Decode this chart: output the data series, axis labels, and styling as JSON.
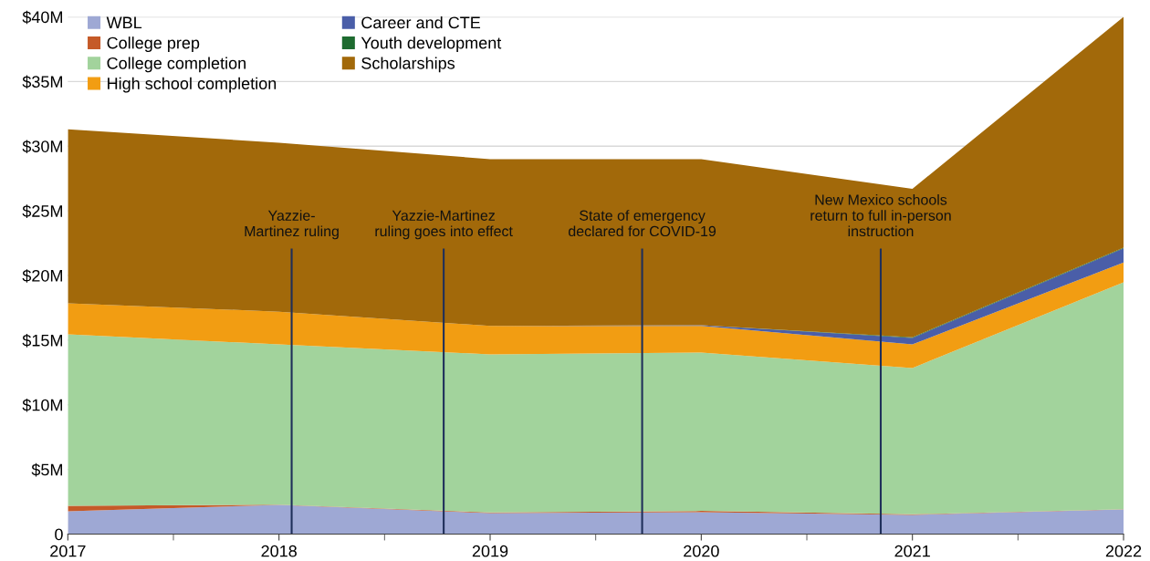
{
  "chart_data": {
    "type": "area",
    "stacked": true,
    "x": [
      2017,
      2018,
      2019,
      2020,
      2021,
      2022
    ],
    "series": [
      {
        "name": "WBL",
        "color": "#9ea8d4",
        "values": [
          1.76,
          2.26,
          1.62,
          1.69,
          1.48,
          1.9
        ]
      },
      {
        "name": "College prep",
        "color": "#c55a28",
        "values": [
          0.42,
          0.02,
          0.05,
          0.1,
          0.05,
          0.02
        ]
      },
      {
        "name": "College completion",
        "color": "#a2d39c",
        "values": [
          13.27,
          12.39,
          12.23,
          12.25,
          11.31,
          17.55
        ]
      },
      {
        "name": "High school completion",
        "color": "#f29d12",
        "values": [
          2.4,
          2.53,
          2.2,
          2.06,
          1.83,
          1.53
        ]
      },
      {
        "name": "Career and CTE",
        "color": "#4a5ea8",
        "values": [
          0,
          0,
          0,
          0.05,
          0.5,
          1.1
        ]
      },
      {
        "name": "Youth development",
        "color": "#1e6b30",
        "values": [
          0,
          0,
          0,
          0,
          0.05,
          0.05
        ]
      },
      {
        "name": "Scholarships",
        "color": "#a2690a",
        "values": [
          13.45,
          13.06,
          12.9,
          12.85,
          11.48,
          17.85
        ]
      }
    ],
    "xlim": [
      2017,
      2022
    ],
    "xticks": [
      2017,
      2018,
      2019,
      2020,
      2021,
      2022
    ],
    "ylim": [
      0,
      40
    ],
    "yticks": [
      0,
      {
        "value": 5,
        "label": "$5M"
      },
      {
        "value": 10,
        "label": "$10M"
      },
      {
        "value": 15,
        "label": "$15M"
      },
      {
        "value": 20,
        "label": "$20M"
      },
      {
        "value": 25,
        "label": "$25M"
      },
      {
        "value": 30,
        "label": "$30M"
      },
      {
        "value": 35,
        "label": "$35M"
      },
      {
        "value": 40,
        "label": "$40M"
      }
    ],
    "grid": "y",
    "legend": "top left",
    "ref_lines": [
      {
        "axis": "x",
        "value": 2018.06,
        "label": "Yazzie-\nMartinez ruling",
        "color": "#1f2f5a"
      },
      {
        "axis": "x",
        "value": 2018.78,
        "label": "Yazzie-Martinez\nruling goes into effect",
        "color": "#1f2f5a"
      },
      {
        "axis": "x",
        "value": 2019.72,
        "label": "State of emergency\ndeclared for COVID-19",
        "color": "#1f2f5a"
      },
      {
        "axis": "x",
        "value": 2020.85,
        "label": "New Mexico schools\nreturn to full in-person\ninstruction",
        "color": "#1f2f5a"
      }
    ]
  }
}
